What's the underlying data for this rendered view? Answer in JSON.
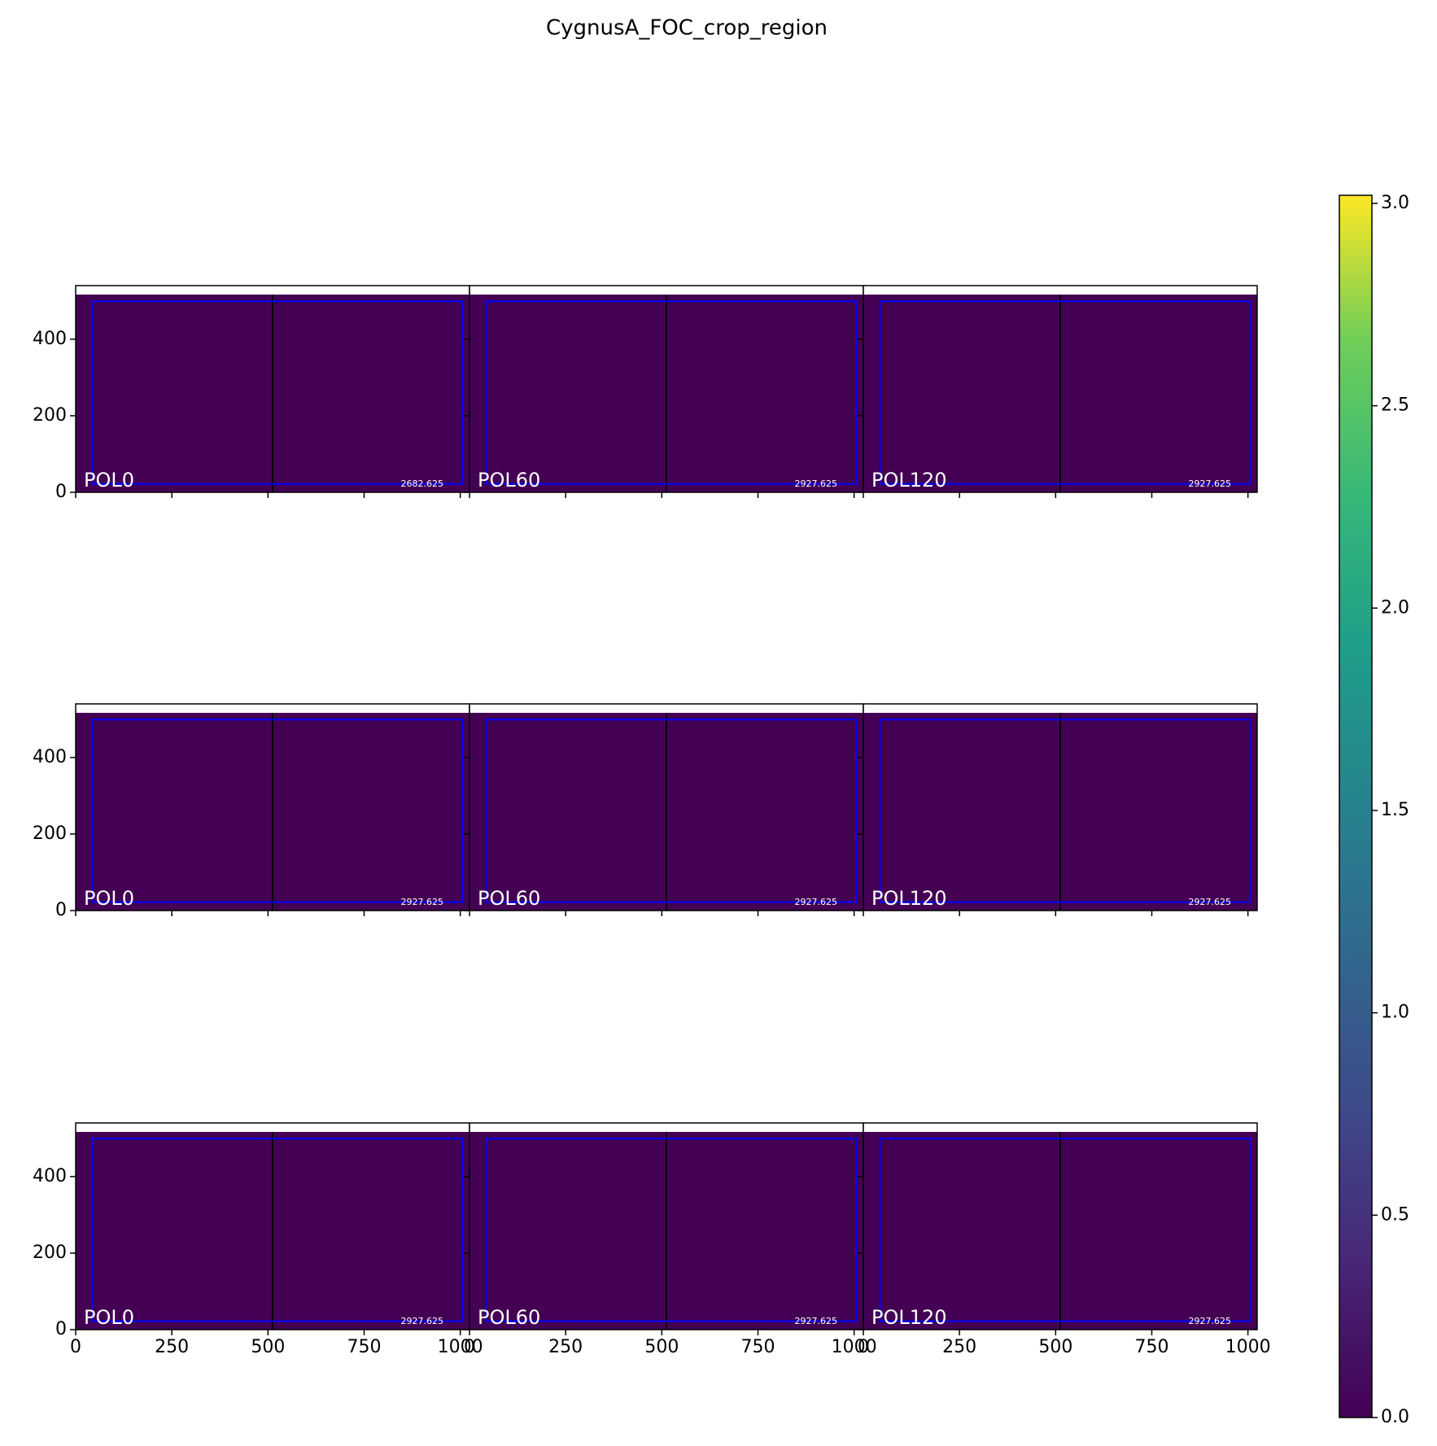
{
  "chart_data": {
    "type": "image_grid",
    "title": "CygnusA_FOC_crop_region",
    "columns": 3,
    "xlim": [
      0,
      1024
    ],
    "ylim": [
      0,
      540
    ],
    "xticks": [
      0,
      250,
      500,
      750,
      1000
    ],
    "yticks": [
      0,
      200,
      400
    ],
    "image_color": "#440154",
    "crop_color": "#0000ff",
    "panels": [
      {
        "label": "POL0",
        "value": 2682.625,
        "crop": [
          43,
          22,
          1005,
          499
        ]
      },
      {
        "label": "POL60",
        "value": 2927.625,
        "crop": [
          43,
          22,
          1005,
          499
        ]
      },
      {
        "label": "POL120",
        "value": 2927.625,
        "crop": [
          43,
          22,
          1005,
          499
        ]
      },
      {
        "label": "POL0",
        "value": 2927.625,
        "crop": [
          43,
          22,
          1005,
          499
        ]
      },
      {
        "label": "POL60",
        "value": 2927.625,
        "crop": [
          43,
          22,
          1005,
          499
        ]
      },
      {
        "label": "POL120",
        "value": 2927.625,
        "crop": [
          43,
          22,
          1005,
          499
        ]
      },
      {
        "label": "POL0",
        "value": 2927.625,
        "crop": [
          43,
          22,
          1005,
          499
        ]
      },
      {
        "label": "POL60",
        "value": 2927.625,
        "crop": [
          43,
          22,
          1005,
          499
        ]
      },
      {
        "label": "POL120",
        "value": 2927.625,
        "crop": [
          43,
          22,
          1005,
          499
        ]
      }
    ],
    "colorbar": {
      "clim": [
        0,
        3.02
      ],
      "ticks": [
        {
          "value": 0,
          "label": "0.0"
        },
        {
          "value": 0.5,
          "label": "0.5"
        },
        {
          "value": 1,
          "label": "1.0"
        },
        {
          "value": 1.5,
          "label": "1.5"
        },
        {
          "value": 2,
          "label": "2.0"
        },
        {
          "value": 2.5,
          "label": "2.5"
        },
        {
          "value": 3,
          "label": "3.0"
        }
      ]
    }
  }
}
